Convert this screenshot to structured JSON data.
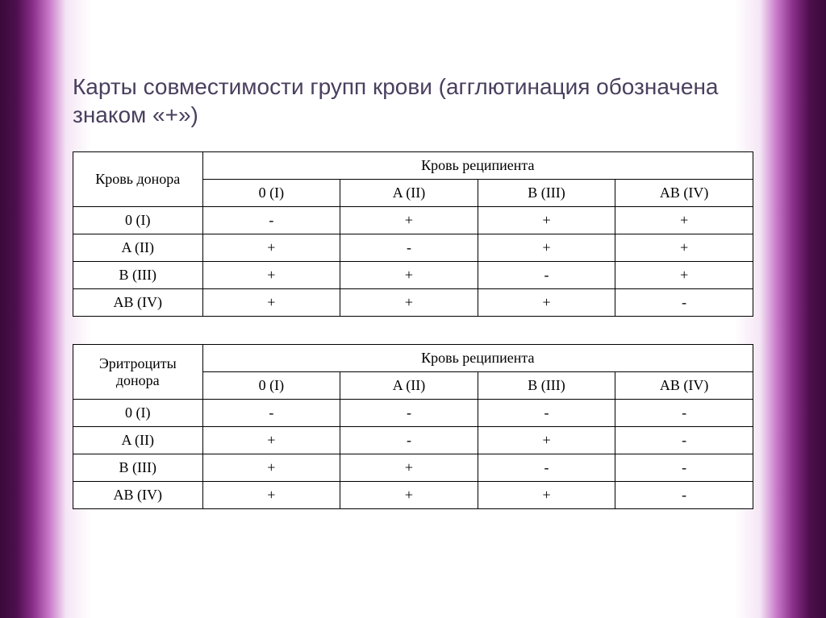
{
  "title": "Карты совместимости групп крови (агглютинация обозначена знаком «+»)",
  "colors": {
    "title_color": "#4a3f5e",
    "table_border": "#000000",
    "table_bg": "#ffffff",
    "text": "#000000"
  },
  "typography": {
    "title_fontsize": 28,
    "table_fontsize": 18,
    "title_font": "Arial",
    "table_font": "Times New Roman"
  },
  "groups": [
    "0 (I)",
    "A (II)",
    "B (III)",
    "AB (IV)"
  ],
  "table1": {
    "type": "table",
    "row_header_label": "Кровь донора",
    "col_header_label": "Кровь реципиента",
    "rows": [
      [
        "-",
        "+",
        "+",
        "+"
      ],
      [
        "+",
        "-",
        "+",
        "+"
      ],
      [
        "+",
        "+",
        "-",
        "+"
      ],
      [
        "+",
        "+",
        "+",
        "-"
      ]
    ]
  },
  "table2": {
    "type": "table",
    "row_header_label": "Эритроциты донора",
    "col_header_label": "Кровь реципиента",
    "rows": [
      [
        "-",
        "-",
        "-",
        "-"
      ],
      [
        "+",
        "-",
        "+",
        "-"
      ],
      [
        "+",
        "+",
        "-",
        "-"
      ],
      [
        "+",
        "+",
        "+",
        "-"
      ]
    ]
  }
}
